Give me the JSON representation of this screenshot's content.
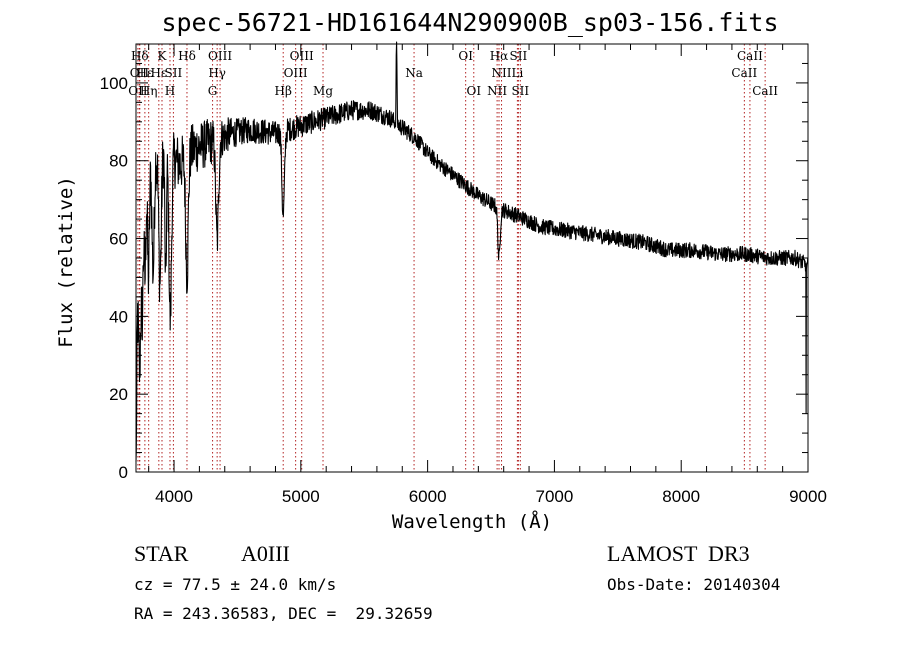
{
  "chart_data": {
    "type": "line",
    "title": "spec-56721-HD161644N290900B_sp03-156.fits",
    "xlabel": "Wavelength (Å)",
    "ylabel": "Flux (relative)",
    "xlim": [
      3700,
      9000
    ],
    "ylim": [
      0,
      110
    ],
    "xticks": [
      4000,
      5000,
      6000,
      7000,
      8000,
      9000
    ],
    "xtick_labels": [
      "4000",
      "5000",
      "6000",
      "7000",
      "8000",
      "9000"
    ],
    "yticks": [
      0,
      20,
      40,
      60,
      80,
      100
    ],
    "ytick_labels": [
      "0",
      "20",
      "40",
      "60",
      "80",
      "100"
    ],
    "spectrum": {
      "continuum": [
        [
          3700,
          0
        ],
        [
          3712,
          45
        ],
        [
          3740,
          72
        ],
        [
          3780,
          80
        ],
        [
          3850,
          82
        ],
        [
          3950,
          82
        ],
        [
          4050,
          79
        ],
        [
          4150,
          83
        ],
        [
          4300,
          85
        ],
        [
          4450,
          87
        ],
        [
          4600,
          88
        ],
        [
          4800,
          87
        ],
        [
          5000,
          89
        ],
        [
          5200,
          91
        ],
        [
          5400,
          93
        ],
        [
          5550,
          93
        ],
        [
          5700,
          91
        ],
        [
          5900,
          86
        ],
        [
          6000,
          82
        ],
        [
          6100,
          79
        ],
        [
          6250,
          75
        ],
        [
          6400,
          71
        ],
        [
          6550,
          68
        ],
        [
          6700,
          66
        ],
        [
          6900,
          63
        ],
        [
          7100,
          62
        ],
        [
          7300,
          61
        ],
        [
          7500,
          60
        ],
        [
          7700,
          59
        ],
        [
          7900,
          57
        ],
        [
          8100,
          57
        ],
        [
          8300,
          56
        ],
        [
          8500,
          56
        ],
        [
          8700,
          55
        ],
        [
          8900,
          55
        ],
        [
          9000,
          53
        ]
      ],
      "absorptions": [
        {
          "center": 3730,
          "depth": 35,
          "width": 9
        },
        {
          "center": 3750,
          "depth": 30,
          "width": 7
        },
        {
          "center": 3771,
          "depth": 28,
          "width": 7
        },
        {
          "center": 3798,
          "depth": 30,
          "width": 8
        },
        {
          "center": 3835,
          "depth": 30,
          "width": 9
        },
        {
          "center": 3889,
          "depth": 33,
          "width": 10
        },
        {
          "center": 3934,
          "depth": 34,
          "width": 6
        },
        {
          "center": 3970,
          "depth": 42,
          "width": 10
        },
        {
          "center": 4102,
          "depth": 30,
          "width": 10
        },
        {
          "center": 4340,
          "depth": 26,
          "width": 11
        },
        {
          "center": 4861,
          "depth": 22,
          "width": 10
        },
        {
          "center": 6563,
          "depth": 13,
          "width": 9
        }
      ],
      "emissions": [
        {
          "center": 5755,
          "height": 22,
          "width": 3
        }
      ],
      "noise_amplitude": [
        [
          3700,
          9
        ],
        [
          4300,
          6
        ],
        [
          4500,
          3.5
        ],
        [
          6000,
          2
        ],
        [
          9000,
          2
        ]
      ],
      "edge_spikes": [
        [
          3705,
          14
        ],
        [
          8985,
          15
        ]
      ]
    },
    "line_markers": [
      {
        "label": "Hδ",
        "wavelength": 3730,
        "row": 0
      },
      {
        "label": "OII",
        "wavelength": 3727,
        "row": 1
      },
      {
        "label": "OII",
        "wavelength": 3715,
        "row": 2
      },
      {
        "label": "Hε",
        "wavelength": 3770,
        "row": 1
      },
      {
        "label": "Hη",
        "wavelength": 3800,
        "row": 2
      },
      {
        "label": "K",
        "wavelength": 3905,
        "row": 0
      },
      {
        "label": "Hε",
        "wavelength": 3880,
        "row": 1
      },
      {
        "label": "SII",
        "wavelength": 3995,
        "row": 1
      },
      {
        "label": "H",
        "wavelength": 3968,
        "row": 2
      },
      {
        "label": "Hδ",
        "wavelength": 4102,
        "row": 0
      },
      {
        "label": "OIII",
        "wavelength": 4363,
        "row": 0
      },
      {
        "label": "Hγ",
        "wavelength": 4340,
        "row": 1
      },
      {
        "label": "G",
        "wavelength": 4304,
        "row": 2
      },
      {
        "label": "OIII",
        "wavelength": 5007,
        "row": 0
      },
      {
        "label": "OIII",
        "wavelength": 4959,
        "row": 1
      },
      {
        "label": "Hβ",
        "wavelength": 4861,
        "row": 2
      },
      {
        "label": "Mg",
        "wavelength": 5175,
        "row": 2
      },
      {
        "label": "Na",
        "wavelength": 5893,
        "row": 1
      },
      {
        "label": "OI",
        "wavelength": 6300,
        "row": 0
      },
      {
        "label": "OI",
        "wavelength": 6364,
        "row": 2
      },
      {
        "label": "Hα",
        "wavelength": 6563,
        "row": 0
      },
      {
        "label": "SII",
        "wavelength": 6716,
        "row": 0
      },
      {
        "label": "NII",
        "wavelength": 6583,
        "row": 1
      },
      {
        "label": "Li",
        "wavelength": 6708,
        "row": 1
      },
      {
        "label": "NII",
        "wavelength": 6548,
        "row": 2
      },
      {
        "label": "SII",
        "wavelength": 6731,
        "row": 2
      },
      {
        "label": "CaII",
        "wavelength": 8542,
        "row": 0
      },
      {
        "label": "CaII",
        "wavelength": 8498,
        "row": 1
      },
      {
        "label": "CaII",
        "wavelength": 8662,
        "row": 2
      }
    ],
    "marker_color": "#b22222",
    "line_color": "#000000",
    "grid": false
  },
  "info": {
    "object_class": "STAR",
    "subclass": "A0III",
    "survey": "LAMOST  DR3",
    "redshift": "cz = 77.5 ± 24.0 km/s",
    "obs_date": "Obs-Date: 20140304",
    "coordinates": "RA = 243.36583, DEC =  29.32659"
  }
}
